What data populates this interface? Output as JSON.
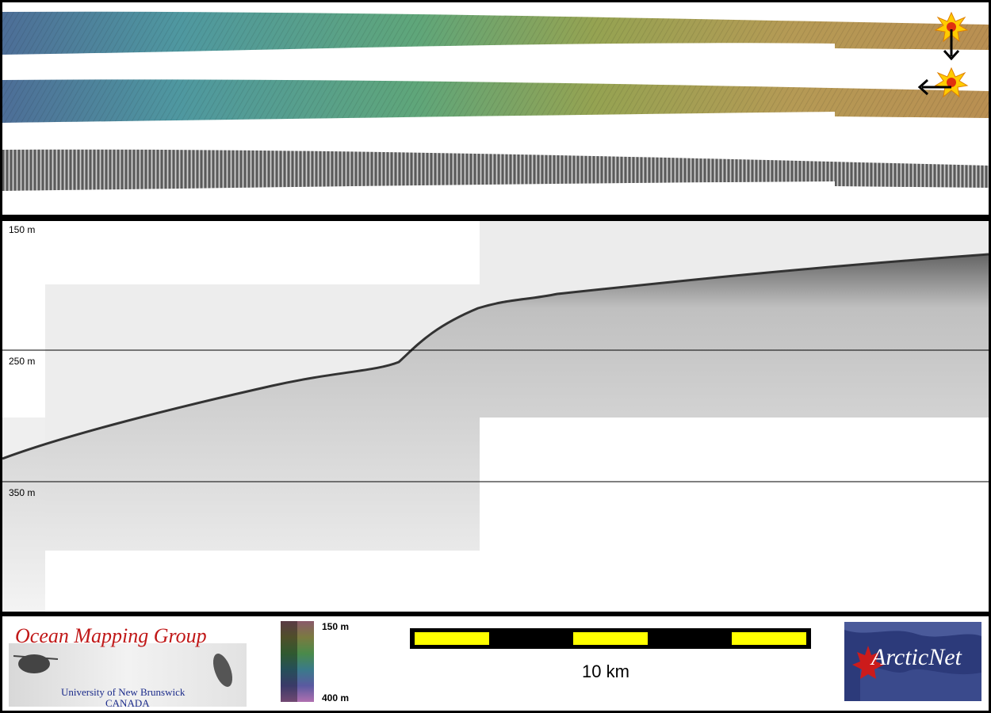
{
  "profile": {
    "depth_ticks": [
      "150 m",
      "250 m",
      "350 m"
    ]
  },
  "footer": {
    "omg_logo": {
      "title": "Ocean Mapping Group",
      "line1": "University of New Brunswick",
      "line2": "CANADA"
    },
    "colorbar": {
      "top_label": "150 m",
      "bottom_label": "400 m"
    },
    "scalebar": {
      "label": "10 km",
      "colors": [
        "#ffff00",
        "#000000"
      ]
    },
    "arcticnet_logo": {
      "text": "ArcticNet"
    }
  },
  "icons": {
    "start_marker": "sun-icon",
    "direction_down": "arrow-down-icon",
    "direction_left": "arrow-left-icon"
  }
}
